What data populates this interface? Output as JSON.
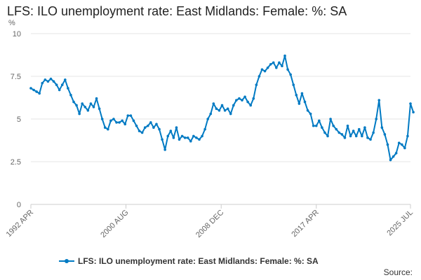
{
  "chart_data": {
    "type": "line",
    "title": "LFS: ILO unemployment rate: East Midlands: Female: %: SA",
    "ylabel": "%",
    "xlabel": "",
    "ylim": [
      0,
      10
    ],
    "yticks": [
      0,
      2.5,
      5,
      7.5,
      10
    ],
    "ytick_labels": [
      "0",
      "2.5",
      "5",
      "7.5",
      "10"
    ],
    "xlim": [
      1992.25,
      2025.5
    ],
    "xticks": [
      1992.25,
      2000.58,
      2008.92,
      2017.25,
      2025.5
    ],
    "xtick_labels": [
      "1992 APR",
      "2000 AUG",
      "2008 DEC",
      "2017 APR",
      "2025 JUL"
    ],
    "grid": true,
    "legend_position": "bottom",
    "series": [
      {
        "name": "LFS: ILO unemployment rate: East Midlands: Female: %: SA",
        "color": "#007ac3",
        "points": [
          [
            1992.25,
            6.8
          ],
          [
            1992.5,
            6.7
          ],
          [
            1992.75,
            6.6
          ],
          [
            1993.0,
            6.5
          ],
          [
            1993.25,
            7.1
          ],
          [
            1993.5,
            7.3
          ],
          [
            1993.75,
            7.2
          ],
          [
            1994.0,
            7.35
          ],
          [
            1994.25,
            7.2
          ],
          [
            1994.5,
            7.0
          ],
          [
            1994.75,
            6.7
          ],
          [
            1995.0,
            7.0
          ],
          [
            1995.25,
            7.3
          ],
          [
            1995.5,
            6.8
          ],
          [
            1995.75,
            6.4
          ],
          [
            1996.0,
            6.0
          ],
          [
            1996.25,
            5.8
          ],
          [
            1996.5,
            5.3
          ],
          [
            1996.75,
            5.9
          ],
          [
            1997.0,
            5.7
          ],
          [
            1997.25,
            5.5
          ],
          [
            1997.5,
            5.9
          ],
          [
            1997.75,
            5.7
          ],
          [
            1998.0,
            6.2
          ],
          [
            1998.25,
            5.6
          ],
          [
            1998.5,
            5.0
          ],
          [
            1998.75,
            4.5
          ],
          [
            1999.0,
            4.4
          ],
          [
            1999.25,
            4.9
          ],
          [
            1999.5,
            5.0
          ],
          [
            1999.75,
            4.8
          ],
          [
            2000.0,
            4.8
          ],
          [
            2000.25,
            4.9
          ],
          [
            2000.5,
            4.7
          ],
          [
            2000.75,
            5.2
          ],
          [
            2001.0,
            5.2
          ],
          [
            2001.25,
            4.9
          ],
          [
            2001.5,
            4.6
          ],
          [
            2001.75,
            4.3
          ],
          [
            2002.0,
            4.2
          ],
          [
            2002.25,
            4.5
          ],
          [
            2002.5,
            4.6
          ],
          [
            2002.75,
            4.8
          ],
          [
            2003.0,
            4.5
          ],
          [
            2003.25,
            4.7
          ],
          [
            2003.5,
            4.4
          ],
          [
            2003.75,
            3.8
          ],
          [
            2004.0,
            3.2
          ],
          [
            2004.25,
            4.0
          ],
          [
            2004.5,
            4.3
          ],
          [
            2004.75,
            3.9
          ],
          [
            2005.0,
            4.5
          ],
          [
            2005.25,
            3.8
          ],
          [
            2005.5,
            4.0
          ],
          [
            2005.75,
            3.9
          ],
          [
            2006.0,
            3.9
          ],
          [
            2006.25,
            3.7
          ],
          [
            2006.5,
            4.0
          ],
          [
            2006.75,
            3.9
          ],
          [
            2007.0,
            3.8
          ],
          [
            2007.25,
            4.0
          ],
          [
            2007.5,
            4.4
          ],
          [
            2007.75,
            5.0
          ],
          [
            2008.0,
            5.3
          ],
          [
            2008.25,
            5.9
          ],
          [
            2008.5,
            5.6
          ],
          [
            2008.75,
            5.5
          ],
          [
            2009.0,
            5.8
          ],
          [
            2009.25,
            5.5
          ],
          [
            2009.5,
            5.6
          ],
          [
            2009.75,
            5.3
          ],
          [
            2010.0,
            5.8
          ],
          [
            2010.25,
            6.1
          ],
          [
            2010.5,
            6.2
          ],
          [
            2010.75,
            6.1
          ],
          [
            2011.0,
            6.3
          ],
          [
            2011.25,
            6.0
          ],
          [
            2011.5,
            5.8
          ],
          [
            2011.75,
            6.2
          ],
          [
            2012.0,
            7.0
          ],
          [
            2012.25,
            7.5
          ],
          [
            2012.5,
            7.9
          ],
          [
            2012.75,
            7.8
          ],
          [
            2013.0,
            8.0
          ],
          [
            2013.25,
            8.2
          ],
          [
            2013.5,
            8.3
          ],
          [
            2013.75,
            8.0
          ],
          [
            2014.0,
            8.3
          ],
          [
            2014.25,
            8.1
          ],
          [
            2014.5,
            8.7
          ],
          [
            2014.75,
            7.9
          ],
          [
            2015.0,
            7.6
          ],
          [
            2015.25,
            7.0
          ],
          [
            2015.5,
            6.4
          ],
          [
            2015.75,
            5.9
          ],
          [
            2016.0,
            6.5
          ],
          [
            2016.25,
            6.0
          ],
          [
            2016.5,
            5.5
          ],
          [
            2016.75,
            5.3
          ],
          [
            2017.0,
            4.6
          ],
          [
            2017.25,
            4.6
          ],
          [
            2017.5,
            4.9
          ],
          [
            2017.75,
            4.5
          ],
          [
            2018.0,
            4.2
          ],
          [
            2018.25,
            4.0
          ],
          [
            2018.5,
            5.0
          ],
          [
            2018.75,
            4.6
          ],
          [
            2019.0,
            4.4
          ],
          [
            2019.25,
            4.2
          ],
          [
            2019.5,
            4.1
          ],
          [
            2019.75,
            3.9
          ],
          [
            2020.0,
            4.6
          ],
          [
            2020.25,
            4.0
          ],
          [
            2020.5,
            4.3
          ],
          [
            2020.75,
            4.0
          ],
          [
            2021.0,
            4.4
          ],
          [
            2021.25,
            4.0
          ],
          [
            2021.5,
            4.5
          ],
          [
            2021.75,
            3.9
          ],
          [
            2022.0,
            3.8
          ],
          [
            2022.25,
            4.2
          ],
          [
            2022.5,
            5.0
          ],
          [
            2022.75,
            6.1
          ],
          [
            2023.0,
            4.5
          ],
          [
            2023.25,
            4.1
          ],
          [
            2023.5,
            3.5
          ],
          [
            2023.75,
            2.6
          ],
          [
            2024.0,
            2.8
          ],
          [
            2024.25,
            3.0
          ],
          [
            2024.5,
            3.6
          ],
          [
            2024.75,
            3.5
          ],
          [
            2025.0,
            3.3
          ],
          [
            2025.25,
            4.0
          ],
          [
            2025.5,
            5.9
          ],
          [
            2025.75,
            5.4
          ]
        ]
      }
    ]
  },
  "legend": {
    "label": "LFS: ILO unemployment rate: East Midlands: Female: %: SA"
  },
  "footer": {
    "source_label": "Source:"
  }
}
